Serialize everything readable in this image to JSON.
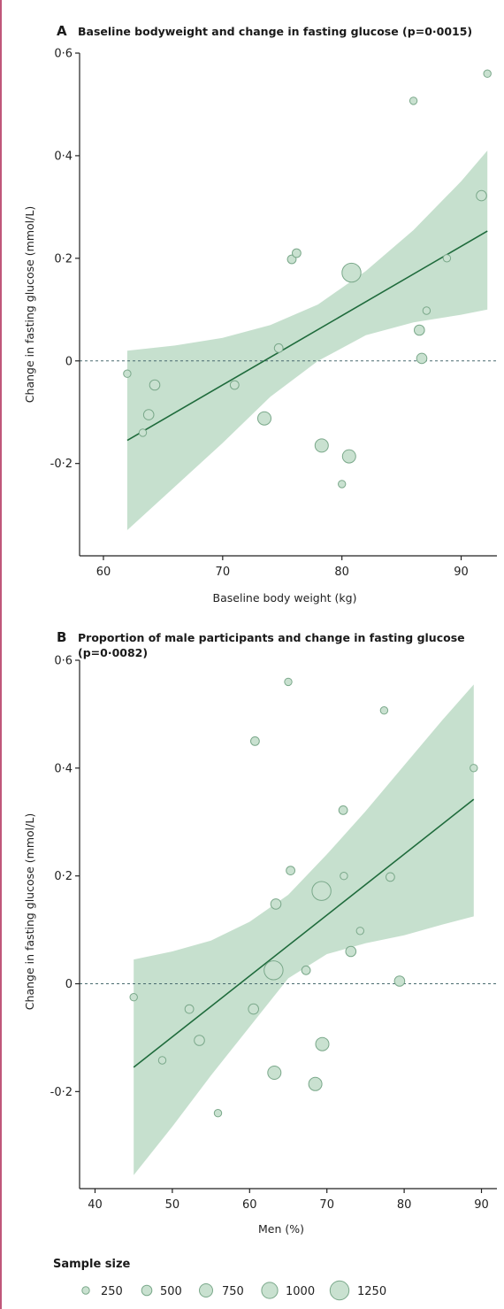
{
  "colors": {
    "band": "#bcdac6",
    "point_fill": "#c9e1d0",
    "point_stroke": "#7aa88a",
    "regression_line": "#1f6b3c",
    "reference_line": "#4a6b70",
    "border": "#c0577a"
  },
  "chart_data": [
    {
      "type": "scatter",
      "letter": "A",
      "title": "Baseline bodyweight and change in fasting glucose (p=0·0015)",
      "xlabel": "Baseline body weight (kg)",
      "ylabel": "Change in fasting glucose (mmol/L)",
      "xlim": [
        58,
        93
      ],
      "ylim": [
        -0.38,
        0.6
      ],
      "xticks": [
        60,
        70,
        80,
        90
      ],
      "xtick_labels": [
        "60",
        "70",
        "80",
        "90"
      ],
      "yticks": [
        -0.2,
        0,
        0.2,
        0.4,
        0.6
      ],
      "ytick_labels": [
        "-0·2",
        "0",
        "0·2",
        "0·4",
        "0·6"
      ],
      "reference_y": 0,
      "regression": {
        "x": [
          62,
          92.2
        ],
        "y": [
          -0.155,
          0.253
        ]
      },
      "band": {
        "x": [
          62,
          66,
          70,
          74,
          78,
          82,
          86,
          90,
          92.2
        ],
        "lower": [
          -0.33,
          -0.245,
          -0.16,
          -0.07,
          0.0,
          0.05,
          0.075,
          0.09,
          0.1
        ],
        "upper": [
          0.02,
          0.03,
          0.045,
          0.07,
          0.11,
          0.175,
          0.255,
          0.35,
          0.41
        ]
      },
      "points": [
        {
          "x": 62,
          "y": -0.025,
          "n": 250
        },
        {
          "x": 63.3,
          "y": -0.14,
          "n": 250
        },
        {
          "x": 63.8,
          "y": -0.105,
          "n": 500
        },
        {
          "x": 64.3,
          "y": -0.047,
          "n": 500
        },
        {
          "x": 71,
          "y": -0.047,
          "n": 350
        },
        {
          "x": 73.5,
          "y": -0.112,
          "n": 750
        },
        {
          "x": 74.7,
          "y": 0.025,
          "n": 350
        },
        {
          "x": 75.8,
          "y": 0.198,
          "n": 350
        },
        {
          "x": 76.2,
          "y": 0.21,
          "n": 350
        },
        {
          "x": 78.3,
          "y": -0.165,
          "n": 750
        },
        {
          "x": 80,
          "y": -0.24,
          "n": 250
        },
        {
          "x": 80.6,
          "y": -0.186,
          "n": 750
        },
        {
          "x": 80.8,
          "y": 0.172,
          "n": 1250
        },
        {
          "x": 86,
          "y": 0.507,
          "n": 250
        },
        {
          "x": 86.5,
          "y": 0.06,
          "n": 500
        },
        {
          "x": 86.7,
          "y": 0.005,
          "n": 500
        },
        {
          "x": 87.1,
          "y": 0.098,
          "n": 250
        },
        {
          "x": 88.8,
          "y": 0.2,
          "n": 250
        },
        {
          "x": 91.7,
          "y": 0.322,
          "n": 500
        },
        {
          "x": 92.2,
          "y": 0.56,
          "n": 250
        }
      ]
    },
    {
      "type": "scatter",
      "letter": "B",
      "title_lines": [
        "Proportion of male participants and change in fasting glucose",
        "(p=0·0082)"
      ],
      "xlabel": "Men (%)",
      "ylabel": "Change in fasting glucose (mmol/L)",
      "xlim": [
        38,
        92
      ],
      "ylim": [
        -0.38,
        0.6
      ],
      "xticks": [
        40,
        50,
        60,
        70,
        80,
        90
      ],
      "xtick_labels": [
        "40",
        "50",
        "60",
        "70",
        "80",
        "90"
      ],
      "yticks": [
        -0.2,
        0,
        0.2,
        0.4,
        0.6
      ],
      "ytick_labels": [
        "-0·2",
        "0",
        "0·2",
        "0·4",
        "0·6"
      ],
      "reference_y": 0,
      "regression": {
        "x": [
          45,
          89
        ],
        "y": [
          -0.155,
          0.342
        ]
      },
      "band": {
        "x": [
          45,
          50,
          55,
          60,
          65,
          70,
          75,
          80,
          85,
          89
        ],
        "lower": [
          -0.355,
          -0.265,
          -0.17,
          -0.08,
          0.01,
          0.055,
          0.075,
          0.09,
          0.11,
          0.125
        ],
        "upper": [
          0.045,
          0.06,
          0.08,
          0.115,
          0.165,
          0.24,
          0.32,
          0.405,
          0.49,
          0.555
        ]
      },
      "points": [
        {
          "x": 45,
          "y": -0.025,
          "n": 250
        },
        {
          "x": 48.7,
          "y": -0.142,
          "n": 250
        },
        {
          "x": 52.2,
          "y": -0.047,
          "n": 350
        },
        {
          "x": 53.5,
          "y": -0.105,
          "n": 500
        },
        {
          "x": 55.9,
          "y": -0.24,
          "n": 250
        },
        {
          "x": 60.5,
          "y": -0.047,
          "n": 500
        },
        {
          "x": 60.7,
          "y": 0.45,
          "n": 350
        },
        {
          "x": 63.1,
          "y": 0.025,
          "n": 1250
        },
        {
          "x": 63.2,
          "y": -0.165,
          "n": 750
        },
        {
          "x": 63.4,
          "y": 0.148,
          "n": 500
        },
        {
          "x": 65,
          "y": 0.56,
          "n": 250
        },
        {
          "x": 65.3,
          "y": 0.21,
          "n": 350
        },
        {
          "x": 67.3,
          "y": 0.025,
          "n": 350
        },
        {
          "x": 68.5,
          "y": -0.186,
          "n": 750
        },
        {
          "x": 69.3,
          "y": 0.172,
          "n": 1250
        },
        {
          "x": 69.4,
          "y": -0.112,
          "n": 750
        },
        {
          "x": 72.1,
          "y": 0.322,
          "n": 350
        },
        {
          "x": 72.2,
          "y": 0.2,
          "n": 250
        },
        {
          "x": 73.1,
          "y": 0.06,
          "n": 500
        },
        {
          "x": 74.3,
          "y": 0.098,
          "n": 250
        },
        {
          "x": 77.4,
          "y": 0.507,
          "n": 250
        },
        {
          "x": 78.2,
          "y": 0.198,
          "n": 350
        },
        {
          "x": 79.4,
          "y": 0.005,
          "n": 500
        },
        {
          "x": 89,
          "y": 0.4,
          "n": 250
        }
      ]
    }
  ],
  "legend": {
    "title": "Sample size",
    "items": [
      {
        "n": 250,
        "label": "250"
      },
      {
        "n": 500,
        "label": "500"
      },
      {
        "n": 750,
        "label": "750"
      },
      {
        "n": 1000,
        "label": "1000"
      },
      {
        "n": 1250,
        "label": "1250"
      }
    ]
  }
}
